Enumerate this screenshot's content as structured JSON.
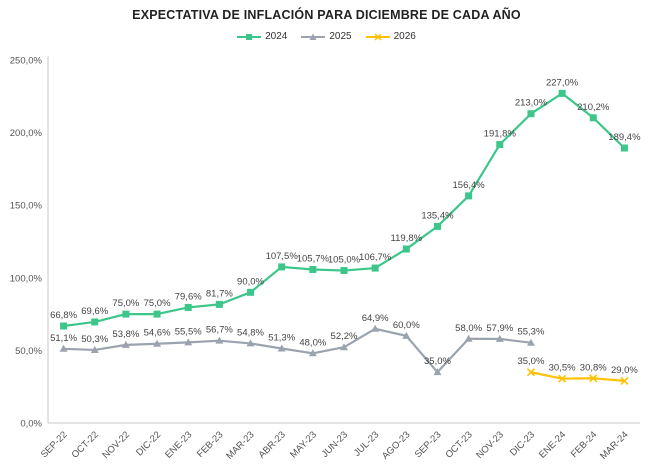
{
  "chart_data": {
    "type": "line",
    "title": "EXPECTATIVA DE INFLACIÓN PARA DICIEMBRE DE CADA AÑO",
    "xlabel": "",
    "ylabel": "",
    "ylim": [
      0,
      250
    ],
    "yticks": [
      0,
      50,
      100,
      150,
      200,
      250
    ],
    "ytick_labels": [
      "0,0%",
      "50,0%",
      "100,0%",
      "150,0%",
      "200,0%",
      "250,0%"
    ],
    "grid": false,
    "legend_position": "top-center",
    "categories": [
      "SEP-22",
      "OCT-22",
      "NOV-22",
      "DIC-22",
      "ENE-23",
      "FEB-23",
      "MAR-23",
      "ABR-23",
      "MAY-23",
      "JUN-23",
      "JUL-23",
      "AGO-23",
      "SEP-23",
      "OCT-23",
      "NOV-23",
      "DIC-23",
      "ENE-24",
      "FEB-24",
      "MAR-24"
    ],
    "series": [
      {
        "name": "2024",
        "color": "#3CC68A",
        "marker": "square",
        "values": [
          66.8,
          69.6,
          75.0,
          75.0,
          79.6,
          81.7,
          90.0,
          107.5,
          105.7,
          105.0,
          106.7,
          119.8,
          135.4,
          156.4,
          191.8,
          213.0,
          227.0,
          210.2,
          189.4
        ],
        "labels": [
          "66,8%",
          "69,6%",
          "75,0%",
          "75,0%",
          "79,6%",
          "81,7%",
          "90,0%",
          "107,5%",
          "105,7%",
          "105,0%",
          "106,7%",
          "119,8%",
          "135,4%",
          "156,4%",
          "191,8%",
          "213,0%",
          "227,0%",
          "210,2%",
          "189,4%"
        ]
      },
      {
        "name": "2025",
        "color": "#9BA3AF",
        "marker": "triangle",
        "values": [
          51.1,
          50.3,
          53.8,
          54.6,
          55.5,
          56.7,
          54.8,
          51.3,
          48.0,
          52.2,
          64.9,
          60.0,
          35.0,
          58.0,
          57.9,
          55.3,
          null,
          null,
          null
        ],
        "labels": [
          "51,1%",
          "50,3%",
          "53,8%",
          "54,6%",
          "55,5%",
          "56,7%",
          "54,8%",
          "51,3%",
          "48,0%",
          "52,2%",
          "64,9%",
          "60,0%",
          "35,0%",
          "58,0%",
          "57,9%",
          "55,3%",
          "",
          "",
          ""
        ]
      },
      {
        "name": "2026",
        "color": "#FFC000",
        "marker": "x",
        "values": [
          null,
          null,
          null,
          null,
          null,
          null,
          null,
          null,
          null,
          null,
          null,
          null,
          null,
          null,
          null,
          35.0,
          30.5,
          30.8,
          29.0
        ],
        "labels": [
          "",
          "",
          "",
          "",
          "",
          "",
          "",
          "",
          "",
          "",
          "",
          "",
          "",
          "",
          "",
          "35,0%",
          "30,5%",
          "30,8%",
          "29,0%"
        ]
      }
    ]
  }
}
